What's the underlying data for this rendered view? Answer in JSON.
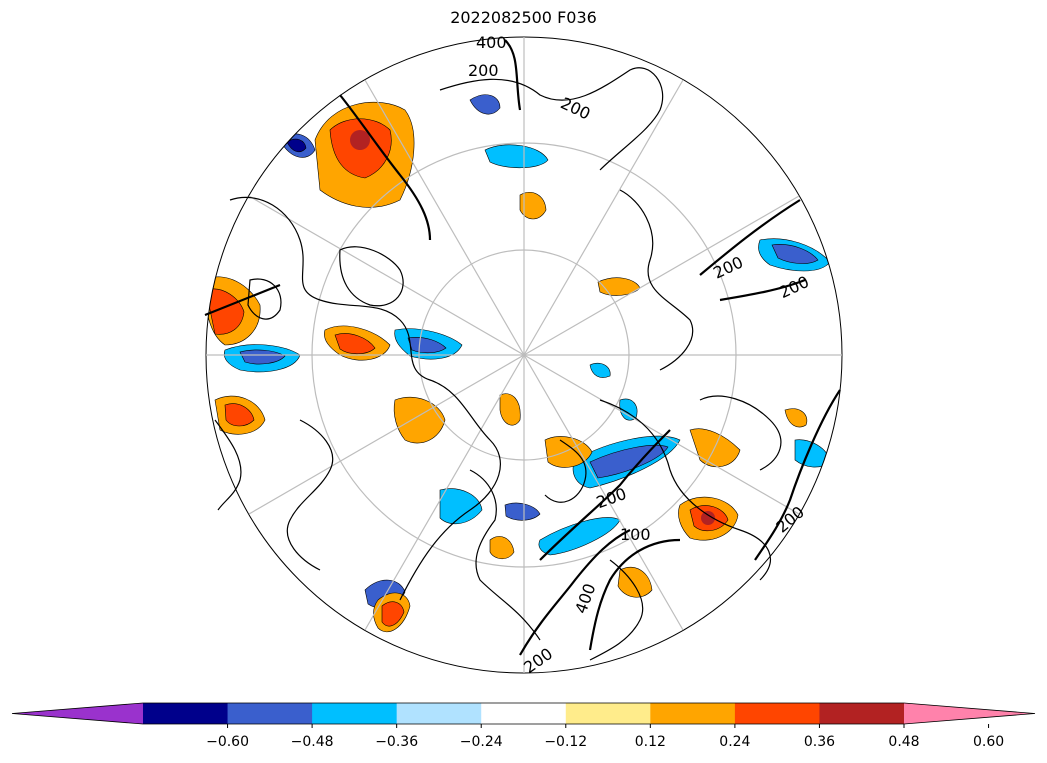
{
  "title": "2022082500 F036",
  "map": {
    "projection": "north-polar-stereographic",
    "contour_labels": [
      "400",
      "200",
      "200",
      "200",
      "200",
      "200",
      "200",
      "100",
      "400",
      "200"
    ]
  },
  "colorbar": {
    "extend": "both",
    "tick_labels": [
      "−0.60",
      "−0.48",
      "−0.36",
      "−0.24",
      "−0.12",
      "0.12",
      "0.24",
      "0.36",
      "0.48",
      "0.60"
    ],
    "colors": [
      "#9a32cd",
      "#00008b",
      "#3a5fcd",
      "#00bfff",
      "#b0e2ff",
      "#ffffff",
      "#ffec8b",
      "#ffa500",
      "#ff4500",
      "#b22222",
      "#ff82ab"
    ]
  }
}
